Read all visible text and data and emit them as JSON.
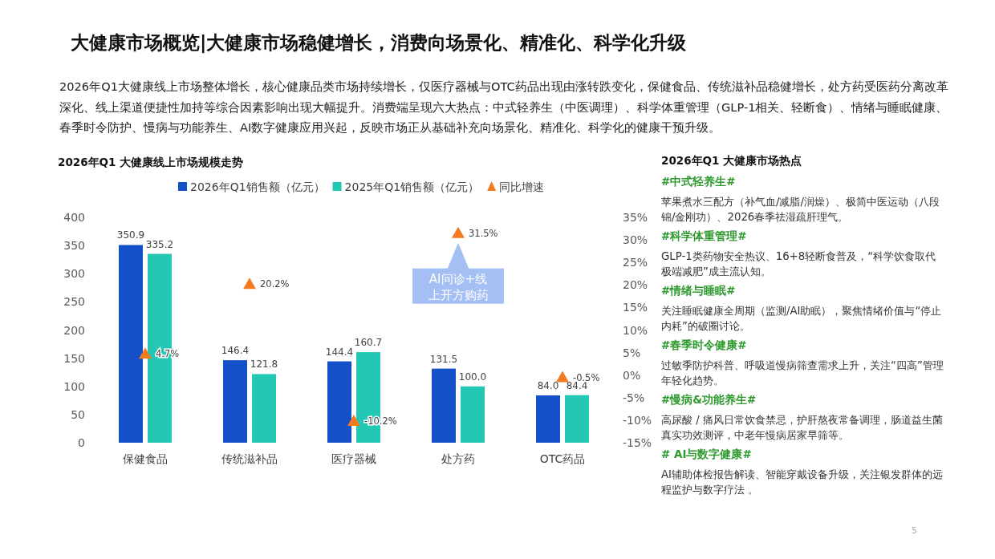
{
  "chart_data": [
    {
      "type": "other",
      "title": "大健康市场概览|大健康市场稳健增长，消费向场景化、精准化、科学化升级",
      "annotations": [
        "2026年Q1大健康线上市场整体增长，核心健康品类市场持续增长，仅医疗器械与OTC药品出现由涨转跌变化，保健食品、传统滋补品稳健增长，处方药受医药分离改革深化、线上渠道便捷性加持等综合因素影响出现大幅提升。消费端呈现六大热点：中式轻养生（中医调理）、科学体重管理（GLP-1相关、轻断食）、情绪与睡眠健康、春季时令防护、慢病与功能养生、AI数字健康应用兴起，反映市场正从基础补充向场景化、精准化、科学化的健康干预升级。",
        "5"
      ]
    },
    {
      "type": "bar",
      "title": "2026年Q1 大健康线上市场规模走势",
      "categories": [
        "保健食品",
        "传统滋补品",
        "医疗器械",
        "处方药",
        "OTC药品"
      ],
      "series": [
        {
          "name": "2026年Q1销售额（亿元）",
          "color": "#1450c8",
          "values": [
            350.9,
            146.4,
            144.4,
            131.5,
            84.0
          ],
          "value_labels": [
            "350.9",
            "146.4",
            "144.4",
            "131.5",
            "84.0"
          ]
        },
        {
          "name": "2025年Q1销售额（亿元）",
          "color": "#22c8b4",
          "values": [
            335.2,
            121.8,
            160.7,
            100.0,
            84.4
          ],
          "value_labels": [
            "335.2",
            "121.8",
            "160.7",
            "100.0",
            "84.4"
          ]
        },
        {
          "name": "同比增速",
          "type": "scatter",
          "axis": "y2",
          "marker": "triangle",
          "color": "#f47a20",
          "values": [
            4.7,
            20.2,
            -10.2,
            31.5,
            -0.5
          ],
          "value_labels": [
            "4.7%",
            "20.2%",
            "-10.2%",
            "31.5%",
            "-0.5%"
          ]
        }
      ],
      "ylim": [
        0,
        400
      ],
      "yticks": [
        0,
        50,
        100,
        150,
        200,
        250,
        300,
        350,
        400
      ],
      "y2lim": [
        -15,
        35
      ],
      "y2ticks": [
        {
          "value": 35,
          "label": "35%"
        },
        {
          "value": 30,
          "label": "30%"
        },
        {
          "value": 25,
          "label": "25%"
        },
        {
          "value": 20,
          "label": "20%"
        },
        {
          "value": 15,
          "label": "15%"
        },
        {
          "value": 10,
          "label": "10%"
        },
        {
          "value": 5,
          "label": "5%"
        },
        {
          "value": 0,
          "label": "0%"
        },
        {
          "value": -5,
          "label": "-5%"
        },
        {
          "value": -10,
          "label": "-10%"
        },
        {
          "value": -15,
          "label": "-15%"
        }
      ],
      "legend": "top",
      "grid": false,
      "annotations": [
        "AI问诊+线上开方购药"
      ]
    },
    {
      "type": "other",
      "title": "2026年Q1 大健康市场热点",
      "annotations": [
        "#中式轻养生#",
        "苹果煮水三配方（补气血/减脂/润燥）、极简中医运动（八段锦/金刚功）、2026春季祛湿疏肝理气。",
        "#科学体重管理#",
        "GLP-1类药物安全热议、16+8轻断食普及，“科学饮食取代极端减肥”成主流认知。",
        "#情绪与睡眠#",
        "关注睡眠健康全周期（监测/AI助眠），聚焦情绪价值与“停止内耗”的破圈讨论。",
        "#春季时令健康#",
        "过敏季防护科普、呼吸道慢病筛查需求上升，关注“四高”管理年轻化趋势。",
        "#慢病&功能养生#",
        "高尿酸 / 痛风日常饮食禁忌，护肝熬夜常备调理，肠道益生菌真实功效测评，中老年慢病居家早筛等。",
        "# AI与数字健康#",
        "AI辅助体检报告解读、智能穿戴设备升级，关注银发群体的远程监护与数字疗法 。"
      ]
    }
  ]
}
